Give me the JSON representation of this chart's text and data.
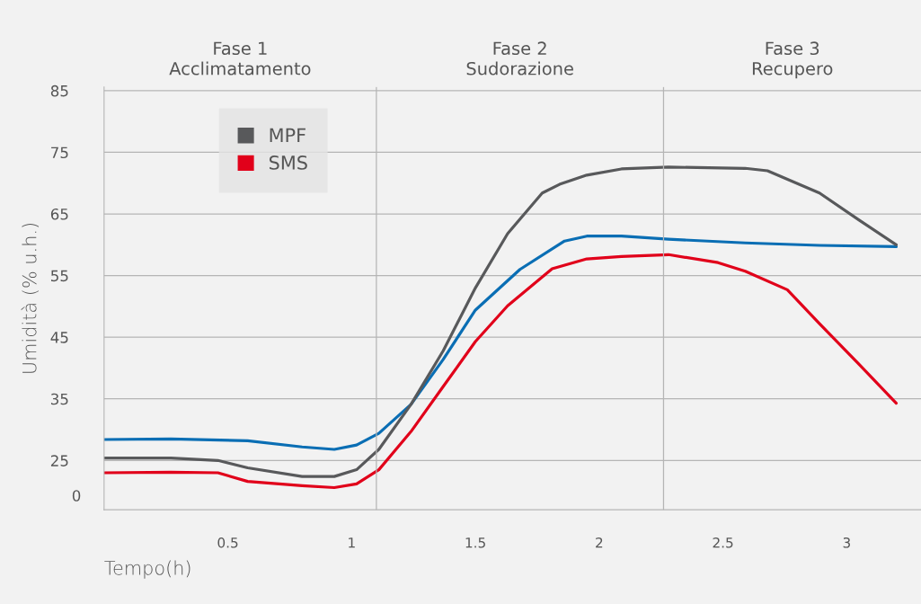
{
  "chart_data": {
    "type": "line",
    "xlabel": "Tempo(h)",
    "ylabel": "Umidità (% u.h.)",
    "xlim": [
      0,
      3.3
    ],
    "xticks": [
      0.5,
      1,
      1.5,
      2,
      2.5,
      3
    ],
    "ylim": [
      17,
      85.6
    ],
    "yticks": [
      25,
      35,
      45,
      55,
      65,
      75,
      85
    ],
    "grid": "y",
    "legend": "top left",
    "marker": "none",
    "line_style": "solid",
    "ref_lines": [
      {
        "axis": "x",
        "value": 1.1
      },
      {
        "axis": "x",
        "value": 2.26
      }
    ],
    "annotations": [
      "Fase 1\nAcclimatamento",
      "Fase 2\nSudorazione",
      "Fase 3\nRecupero",
      "0"
    ],
    "series": [
      {
        "color": "#0a6eb4",
        "x": [
          0,
          0.27,
          0.58,
          0.8,
          0.93,
          1.02,
          1.11,
          1.24,
          1.37,
          1.5,
          1.68,
          1.86,
          1.95,
          2.09,
          2.28,
          2.59,
          2.89,
          3.2
        ],
        "values": [
          28.4,
          28.5,
          28.2,
          27.2,
          26.8,
          27.5,
          29.4,
          34.1,
          41.4,
          49.4,
          56.0,
          60.6,
          61.4,
          61.4,
          60.9,
          60.3,
          59.9,
          59.7
        ]
      },
      {
        "name": "MPF",
        "color": "#58595b",
        "x": [
          0,
          0.27,
          0.46,
          0.58,
          0.8,
          0.93,
          1.02,
          1.11,
          1.24,
          1.37,
          1.5,
          1.63,
          1.77,
          1.84,
          1.95,
          2.09,
          2.28,
          2.59,
          2.68,
          2.89,
          3.05,
          3.2
        ],
        "values": [
          25.4,
          25.4,
          25.0,
          23.8,
          22.4,
          22.4,
          23.5,
          26.8,
          34.1,
          42.8,
          53.0,
          61.8,
          68.4,
          69.8,
          71.3,
          72.3,
          72.6,
          72.4,
          72.0,
          68.4,
          64.0,
          60.0
        ]
      },
      {
        "name": "SMS",
        "color": "#e1001a",
        "x": [
          0,
          0.27,
          0.46,
          0.58,
          0.8,
          0.93,
          1.02,
          1.11,
          1.24,
          1.37,
          1.5,
          1.63,
          1.81,
          1.95,
          2.09,
          2.28,
          2.48,
          2.59,
          2.76,
          2.89,
          3.05,
          3.2
        ],
        "values": [
          23.0,
          23.1,
          23.0,
          21.6,
          20.9,
          20.6,
          21.2,
          23.5,
          29.7,
          37.0,
          44.3,
          50.1,
          56.1,
          57.7,
          58.1,
          58.4,
          57.1,
          55.7,
          52.7,
          47.2,
          40.6,
          34.3
        ]
      }
    ]
  }
}
